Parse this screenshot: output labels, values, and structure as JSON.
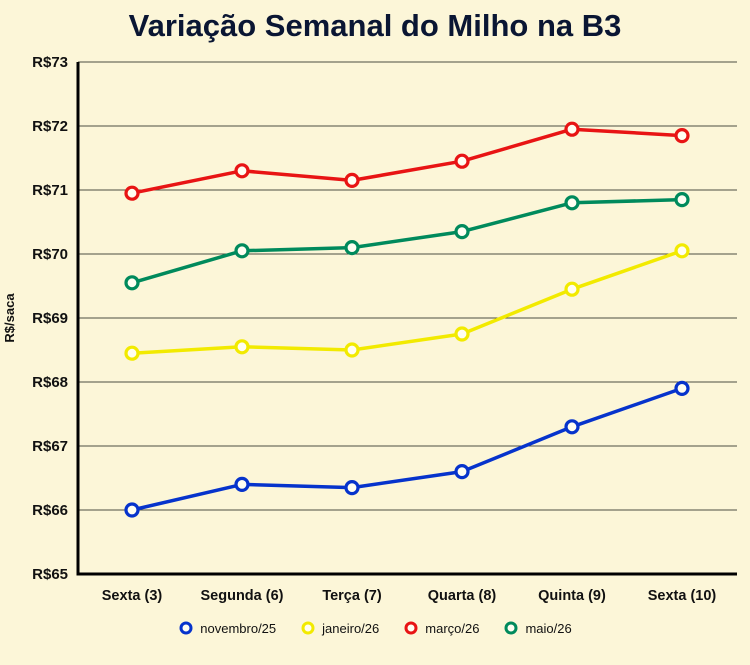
{
  "title": "Variação Semanal do Milho na B3",
  "chart_data": {
    "type": "line",
    "categories": [
      "Sexta (3)",
      "Segunda (6)",
      "Terça (7)",
      "Quarta (8)",
      "Quinta (9)",
      "Sexta (10)"
    ],
    "series": [
      {
        "name": "novembro/25",
        "color": "#0633cc",
        "values": [
          66.0,
          66.4,
          66.35,
          66.6,
          67.3,
          67.9
        ]
      },
      {
        "name": "janeiro/26",
        "color": "#f2ea00",
        "values": [
          68.45,
          68.55,
          68.5,
          68.75,
          69.45,
          70.05
        ]
      },
      {
        "name": "março/26",
        "color": "#e81414",
        "values": [
          70.95,
          71.3,
          71.15,
          71.45,
          71.95,
          71.85
        ]
      },
      {
        "name": "maio/26",
        "color": "#008a5c",
        "values": [
          69.55,
          70.05,
          70.1,
          70.35,
          70.8,
          70.85
        ]
      }
    ],
    "ylabel": "R$/saca",
    "xlabel": "",
    "ylim": [
      65,
      73
    ],
    "ytick_prefix": "R$",
    "grid": true,
    "legend_position": "bottom"
  },
  "colors": {
    "background": "#fcf6d8",
    "title_text": "#0a1633",
    "axis_text": "#111111",
    "gridline": "#4d4d42",
    "axis_line": "#000000",
    "marker_fill": "#fffef2"
  }
}
